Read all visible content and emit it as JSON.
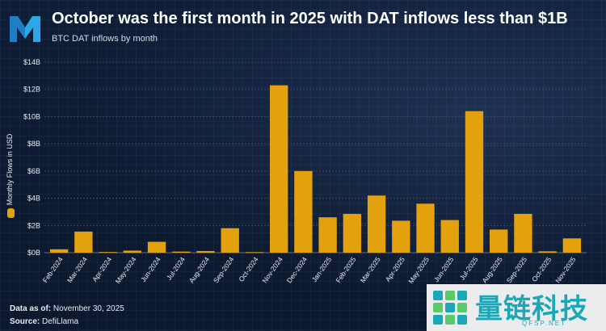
{
  "header": {
    "title": "October was the first month in 2025 with DAT inflows less than $1B",
    "subtitle": "BTC DAT inflows by month"
  },
  "footer": {
    "data_as_of_label": "Data as of:",
    "data_as_of_value": "November 30, 2025",
    "source_label": "Source:",
    "source_value": "DefiLlama"
  },
  "watermark": {
    "text": "量链科技",
    "url": "QFSP.NET"
  },
  "colors": {
    "bar": "#e3a10e",
    "background": "#0d1a30",
    "gridline": "#3a4a66",
    "text": "#ffffff"
  },
  "chart_data": {
    "type": "bar",
    "title": "October was the first month in 2025 with DAT inflows less than $1B",
    "subtitle": "BTC DAT inflows by month",
    "xlabel": "",
    "ylabel": "Monthly Flows in USD",
    "ylim": [
      0,
      14
    ],
    "yticks": [
      0,
      2,
      4,
      6,
      8,
      10,
      12,
      14
    ],
    "ytick_labels": [
      "$0B",
      "$2B",
      "$4B",
      "$6B",
      "$8B",
      "$10B",
      "$12B",
      "$14B"
    ],
    "grid": "horizontal",
    "legend": "none",
    "categories": [
      "Feb-2024",
      "Mar-2024",
      "Apr-2024",
      "May-2024",
      "Jun-2024",
      "Jul-2024",
      "Aug-2024",
      "Sep-2024",
      "Oct-2024",
      "Nov-2024",
      "Dec-2024",
      "Jan-2025",
      "Feb-2025",
      "Mar-2025",
      "Apr-2025",
      "May-2025",
      "Jun-2025",
      "Jul-2025",
      "Aug-2025",
      "Sep-2025",
      "Oct-2025",
      "Nov-2025"
    ],
    "values": [
      0.25,
      1.55,
      0.05,
      0.15,
      0.8,
      0.08,
      0.12,
      1.8,
      0.04,
      12.3,
      6.0,
      2.6,
      2.85,
      4.2,
      2.35,
      3.6,
      2.4,
      10.4,
      1.7,
      2.85,
      0.1,
      1.05
    ],
    "units": "Billions USD"
  }
}
